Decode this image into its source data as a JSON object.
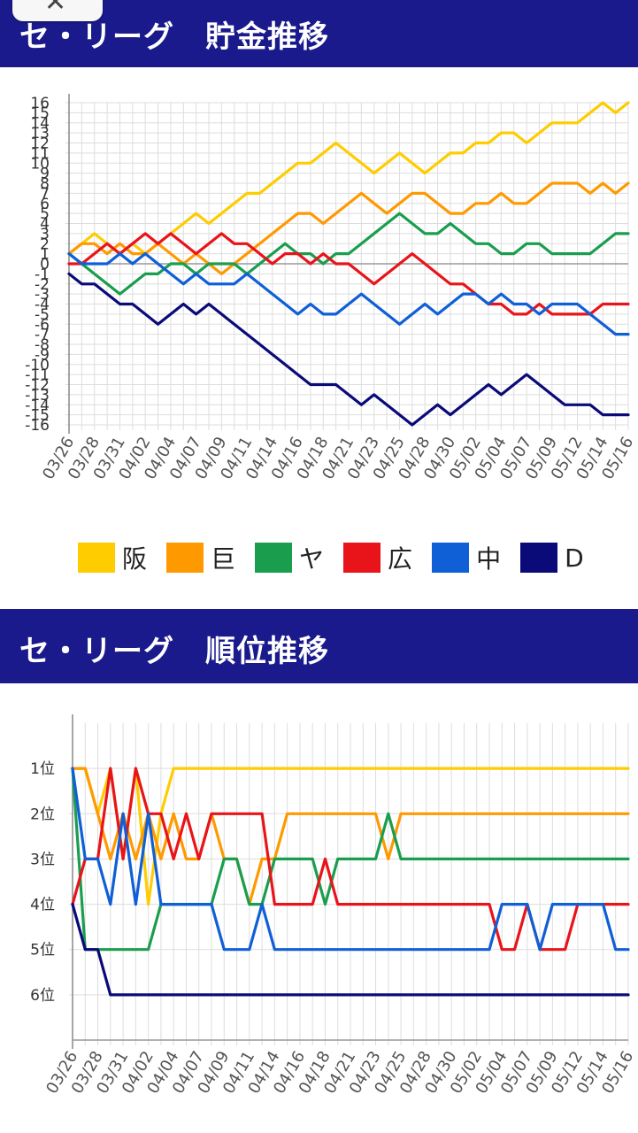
{
  "header": {
    "close_icon": "close-icon"
  },
  "section1": {
    "title": "セ・リーグ　貯金推移"
  },
  "section2": {
    "title": "セ・リーグ　順位推移"
  },
  "legend": [
    {
      "label": "阪",
      "color": "#ffcc00"
    },
    {
      "label": "巨",
      "color": "#ff9900"
    },
    {
      "label": "ヤ",
      "color": "#1a9e4e"
    },
    {
      "label": "広",
      "color": "#e8141a"
    },
    {
      "label": "中",
      "color": "#0f5fd6"
    },
    {
      "label": "D",
      "color": "#0a0a78"
    }
  ],
  "chart_data": [
    {
      "type": "line",
      "title": "セ・リーグ　貯金推移",
      "x_tick_labels": [
        "03/26",
        "03/28",
        "03/31",
        "04/02",
        "04/04",
        "04/07",
        "04/09",
        "04/11",
        "04/14",
        "04/16",
        "04/18",
        "04/21",
        "04/23",
        "04/25",
        "04/28",
        "04/30",
        "05/02",
        "05/04",
        "05/07",
        "05/09",
        "05/12",
        "05/14",
        "05/16"
      ],
      "x_tick_at_game": [
        0,
        2,
        4,
        6,
        8,
        10,
        12,
        14,
        16,
        18,
        20,
        22,
        24,
        26,
        28,
        30,
        32,
        34,
        36,
        38,
        40,
        42,
        44
      ],
      "y_ticks": [
        -16,
        -15,
        -14,
        -13,
        -12,
        -11,
        -10,
        -9,
        -8,
        -7,
        -6,
        -5,
        -4,
        -3,
        -2,
        -1,
        0,
        1,
        2,
        3,
        4,
        5,
        6,
        7,
        8,
        9,
        10,
        11,
        12,
        13,
        14,
        15,
        16
      ],
      "ylim": [
        -16,
        16
      ],
      "grid": true,
      "series": [
        {
          "name": "阪",
          "color": "#ffcc00",
          "values": [
            1,
            2,
            3,
            2,
            1,
            2,
            1,
            2,
            3,
            4,
            5,
            4,
            5,
            6,
            7,
            7,
            8,
            9,
            10,
            10,
            11,
            12,
            11,
            10,
            9,
            10,
            11,
            10,
            9,
            10,
            11,
            11,
            12,
            12,
            13,
            13,
            12,
            13,
            14,
            14,
            14,
            15,
            16,
            15,
            16
          ]
        },
        {
          "name": "巨",
          "color": "#ff9900",
          "values": [
            1,
            2,
            2,
            1,
            2,
            1,
            1,
            2,
            1,
            0,
            1,
            0,
            -1,
            0,
            1,
            2,
            3,
            4,
            5,
            5,
            4,
            5,
            6,
            7,
            6,
            5,
            6,
            7,
            7,
            6,
            5,
            5,
            6,
            6,
            7,
            6,
            6,
            7,
            8,
            8,
            8,
            7,
            8,
            7,
            8
          ]
        },
        {
          "name": "ヤ",
          "color": "#1a9e4e",
          "values": [
            1,
            0,
            -1,
            -2,
            -3,
            -2,
            -1,
            -1,
            0,
            0,
            -1,
            0,
            0,
            0,
            -1,
            0,
            1,
            2,
            1,
            1,
            0,
            1,
            1,
            2,
            3,
            4,
            5,
            4,
            3,
            3,
            4,
            3,
            2,
            2,
            1,
            1,
            2,
            2,
            1,
            1,
            1,
            1,
            2,
            3,
            3
          ]
        },
        {
          "name": "広",
          "color": "#e8141a",
          "values": [
            0,
            0,
            1,
            2,
            1,
            2,
            3,
            2,
            3,
            2,
            1,
            2,
            3,
            2,
            2,
            1,
            0,
            1,
            1,
            0,
            1,
            0,
            0,
            -1,
            -2,
            -1,
            0,
            1,
            0,
            -1,
            -2,
            -2,
            -3,
            -4,
            -4,
            -5,
            -5,
            -4,
            -5,
            -5,
            -5,
            -5,
            -4,
            -4,
            -4
          ]
        },
        {
          "name": "中",
          "color": "#0f5fd6",
          "values": [
            1,
            0,
            0,
            0,
            1,
            0,
            1,
            0,
            -1,
            -2,
            -1,
            -2,
            -2,
            -2,
            -1,
            -2,
            -3,
            -4,
            -5,
            -4,
            -5,
            -5,
            -4,
            -3,
            -4,
            -5,
            -6,
            -5,
            -4,
            -5,
            -4,
            -3,
            -3,
            -4,
            -3,
            -4,
            -4,
            -5,
            -4,
            -4,
            -4,
            -5,
            -6,
            -7,
            -7
          ]
        },
        {
          "name": "D",
          "color": "#0a0a78",
          "values": [
            -1,
            -2,
            -2,
            -3,
            -4,
            -4,
            -5,
            -6,
            -5,
            -4,
            -5,
            -4,
            -5,
            -6,
            -7,
            -8,
            -9,
            -10,
            -11,
            -12,
            -12,
            -12,
            -13,
            -14,
            -13,
            -14,
            -15,
            -16,
            -15,
            -14,
            -15,
            -14,
            -13,
            -12,
            -13,
            -12,
            -11,
            -12,
            -13,
            -14,
            -14,
            -14,
            -15,
            -15,
            -15
          ]
        }
      ]
    },
    {
      "type": "line",
      "title": "セ・リーグ　順位推移",
      "x_tick_labels": [
        "03/26",
        "03/28",
        "03/31",
        "04/02",
        "04/04",
        "04/07",
        "04/09",
        "04/11",
        "04/14",
        "04/16",
        "04/18",
        "04/21",
        "04/23",
        "04/25",
        "04/28",
        "04/30",
        "05/02",
        "05/04",
        "05/07",
        "05/09",
        "05/12",
        "05/14",
        "05/16"
      ],
      "x_tick_at_game": [
        0,
        2,
        4,
        6,
        8,
        10,
        12,
        14,
        16,
        18,
        20,
        22,
        24,
        26,
        28,
        30,
        32,
        34,
        36,
        38,
        40,
        42,
        44
      ],
      "y_tick_labels": [
        "1位",
        "2位",
        "3位",
        "4位",
        "5位",
        "6位"
      ],
      "y_ticks": [
        1,
        2,
        3,
        4,
        5,
        6
      ],
      "ylim": [
        0,
        7
      ],
      "y_inverted": true,
      "grid": true,
      "series": [
        {
          "name": "阪",
          "color": "#ffcc00",
          "values": [
            1,
            1,
            2,
            1,
            3,
            1,
            4,
            2,
            1,
            1,
            1,
            1,
            1,
            1,
            1,
            1,
            1,
            1,
            1,
            1,
            1,
            1,
            1,
            1,
            1,
            1,
            1,
            1,
            1,
            1,
            1,
            1,
            1,
            1,
            1,
            1,
            1,
            1,
            1,
            1,
            1,
            1,
            1,
            1,
            1
          ]
        },
        {
          "name": "巨",
          "color": "#ff9900",
          "values": [
            1,
            1,
            2,
            3,
            2,
            3,
            2,
            3,
            2,
            3,
            3,
            2,
            3,
            3,
            4,
            3,
            3,
            2,
            2,
            2,
            2,
            2,
            2,
            2,
            2,
            3,
            2,
            2,
            2,
            2,
            2,
            2,
            2,
            2,
            2,
            2,
            2,
            2,
            2,
            2,
            2,
            2,
            2,
            2,
            2
          ]
        },
        {
          "name": "ヤ",
          "color": "#1a9e4e",
          "values": [
            1,
            5,
            5,
            5,
            5,
            5,
            5,
            4,
            4,
            4,
            4,
            4,
            3,
            3,
            4,
            4,
            3,
            3,
            3,
            3,
            4,
            3,
            3,
            3,
            3,
            2,
            3,
            3,
            3,
            3,
            3,
            3,
            3,
            3,
            3,
            3,
            3,
            3,
            3,
            3,
            3,
            3,
            3,
            3,
            3
          ]
        },
        {
          "name": "広",
          "color": "#e8141a",
          "values": [
            4,
            3,
            3,
            1,
            3,
            1,
            2,
            2,
            3,
            2,
            3,
            2,
            2,
            2,
            2,
            2,
            4,
            4,
            4,
            4,
            3,
            4,
            4,
            4,
            4,
            4,
            4,
            4,
            4,
            4,
            4,
            4,
            4,
            4,
            5,
            5,
            4,
            5,
            5,
            5,
            4,
            4,
            4,
            4,
            4
          ]
        },
        {
          "name": "中",
          "color": "#0f5fd6",
          "values": [
            1,
            3,
            3,
            4,
            2,
            4,
            2,
            4,
            4,
            4,
            4,
            4,
            5,
            5,
            5,
            4,
            5,
            5,
            5,
            5,
            5,
            5,
            5,
            5,
            5,
            5,
            5,
            5,
            5,
            5,
            5,
            5,
            5,
            5,
            4,
            4,
            4,
            5,
            4,
            4,
            4,
            4,
            4,
            5,
            5
          ]
        },
        {
          "name": "D",
          "color": "#0a0a78",
          "values": [
            4,
            5,
            5,
            6,
            6,
            6,
            6,
            6,
            6,
            6,
            6,
            6,
            6,
            6,
            6,
            6,
            6,
            6,
            6,
            6,
            6,
            6,
            6,
            6,
            6,
            6,
            6,
            6,
            6,
            6,
            6,
            6,
            6,
            6,
            6,
            6,
            6,
            6,
            6,
            6,
            6,
            6,
            6,
            6,
            6
          ]
        }
      ]
    }
  ]
}
